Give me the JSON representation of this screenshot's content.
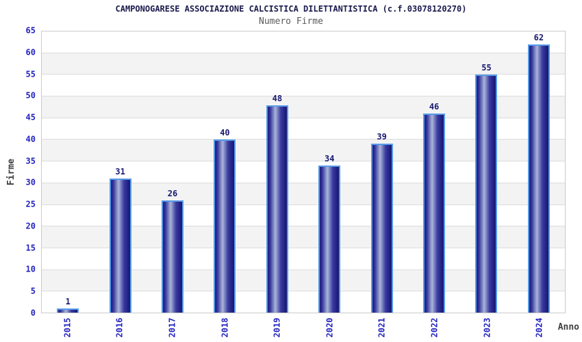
{
  "chart_data": {
    "type": "bar",
    "title": "CAMPONOGARESE ASSOCIAZIONE CALCISTICA DILETTANTISTICA (c.f.03078120270)",
    "subtitle": "Numero Firme",
    "xlabel": "Anno",
    "ylabel": "Firme",
    "categories": [
      "2015",
      "2016",
      "2017",
      "2018",
      "2019",
      "2020",
      "2021",
      "2022",
      "2023",
      "2024"
    ],
    "values": [
      1,
      31,
      26,
      40,
      48,
      34,
      39,
      46,
      55,
      62
    ],
    "ylim": [
      0,
      65
    ],
    "ytick_step": 5,
    "yticks": [
      0,
      5,
      10,
      15,
      20,
      25,
      30,
      35,
      40,
      45,
      50,
      55,
      60,
      65
    ],
    "grid": "horizontal-bands-alternating",
    "legend": "none",
    "bar_value_labels": true,
    "x_tick_rotation_deg": -90,
    "colors": {
      "title": "#1a1a4d",
      "subtitle": "#595959",
      "tick_label": "#2323bf",
      "value_label": "#191970",
      "axis_label": "#404040",
      "bar_dark": "#1e1e7e",
      "bar_highlight": "#aab4dc",
      "bar_border": "#559ae8",
      "band_alt": "#f3f3f3",
      "gridline": "#dcdcdc",
      "plot_border": "#c9c9c9"
    }
  }
}
